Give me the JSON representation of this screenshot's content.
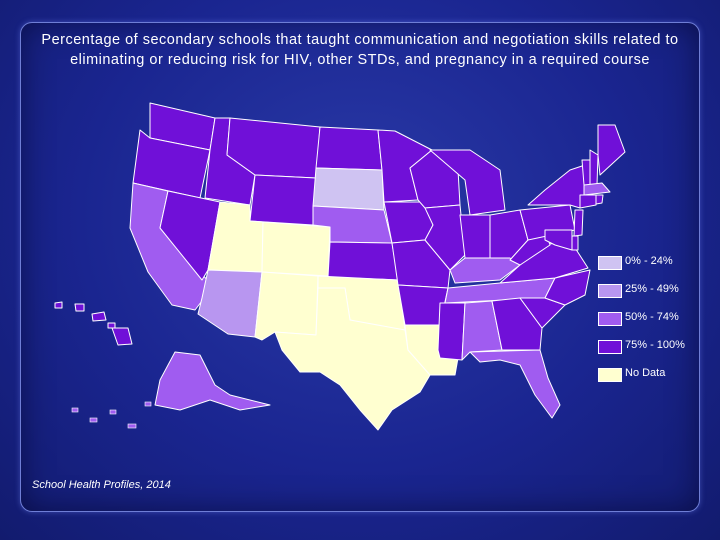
{
  "title": "Percentage of secondary schools that taught communication and negotiation skills related to eliminating or reducing risk for HIV, other STDs, and pregnancy in a required course",
  "source": "School Health Profiles, 2014",
  "colors": {
    "0-24": "#cfc3f2",
    "25-49": "#b896f0",
    "50-74": "#a05cf0",
    "75-100": "#7010d8",
    "no_data": "#ffffd0",
    "border": "#ffffff"
  },
  "legend": [
    {
      "label": "0% - 24%",
      "key": "0-24"
    },
    {
      "label": "25% - 49%",
      "key": "25-49"
    },
    {
      "label": "50% - 74%",
      "key": "50-74"
    },
    {
      "label": "75% - 100%",
      "key": "75-100"
    },
    {
      "label": "No Data",
      "key": "no_data"
    }
  ],
  "states": {
    "WA": "75-100",
    "OR": "75-100",
    "CA": "50-74",
    "ID": "75-100",
    "NV": "75-100",
    "MT": "75-100",
    "WY": "75-100",
    "UT": "no_data",
    "CO": "no_data",
    "AZ": "25-49",
    "NM": "no_data",
    "ND": "75-100",
    "SD": "0-24",
    "NE": "50-74",
    "KS": "75-100",
    "OK": "no_data",
    "TX": "no_data",
    "MN": "75-100",
    "IA": "75-100",
    "MO": "75-100",
    "AR": "75-100",
    "LA": "no_data",
    "WI": "75-100",
    "IL": "75-100",
    "MI": "75-100",
    "IN": "75-100",
    "OH": "75-100",
    "KY": "50-74",
    "TN": "50-74",
    "MS": "75-100",
    "AL": "50-74",
    "GA": "75-100",
    "FL": "50-74",
    "SC": "75-100",
    "NC": "75-100",
    "VA": "75-100",
    "WV": "75-100",
    "PA": "75-100",
    "NY": "75-100",
    "VT": "75-100",
    "NH": "75-100",
    "ME": "75-100",
    "MA": "50-74",
    "CT": "75-100",
    "RI": "75-100",
    "NJ": "75-100",
    "DE": "75-100",
    "MD": "75-100",
    "AK": "50-74",
    "HI": "75-100"
  }
}
